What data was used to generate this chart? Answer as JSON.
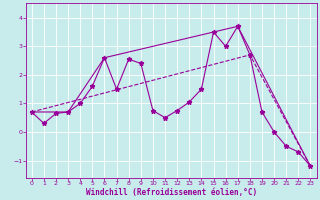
{
  "xlabel": "Windchill (Refroidissement éolien,°C)",
  "bg_color": "#c8ecec",
  "line_color": "#990099",
  "grid_color": "#ffffff",
  "x_ticks": [
    0,
    1,
    2,
    3,
    4,
    5,
    6,
    7,
    8,
    9,
    10,
    11,
    12,
    13,
    14,
    15,
    16,
    17,
    18,
    19,
    20,
    21,
    22,
    23
  ],
  "y_ticks": [
    -1,
    0,
    1,
    2,
    3,
    4
  ],
  "ylim": [
    -1.6,
    4.5
  ],
  "xlim": [
    -0.5,
    23.5
  ],
  "series1_x": [
    0,
    1,
    2,
    3,
    4,
    5,
    6,
    7,
    8,
    9,
    10,
    11,
    12,
    13,
    14,
    15,
    16,
    17,
    18,
    19,
    20,
    21,
    22,
    23
  ],
  "series1_y": [
    0.7,
    0.3,
    0.65,
    0.7,
    1.0,
    1.6,
    2.6,
    1.5,
    2.55,
    2.4,
    0.75,
    0.5,
    0.75,
    1.05,
    1.5,
    3.5,
    3.0,
    3.7,
    2.7,
    0.7,
    0.0,
    -0.5,
    -0.7,
    -1.2
  ],
  "series2_x": [
    0,
    3,
    6,
    17,
    23
  ],
  "series2_y": [
    0.7,
    0.7,
    2.6,
    3.7,
    -1.2
  ],
  "series3_x": [
    0,
    18,
    23
  ],
  "series3_y": [
    0.7,
    2.7,
    -1.2
  ]
}
